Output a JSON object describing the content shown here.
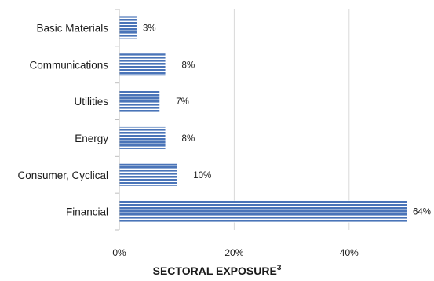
{
  "chart_data": {
    "type": "bar",
    "orientation": "horizontal",
    "title": "SECTORAL EXPOSURE",
    "title_superscript": "3",
    "xlabel": "",
    "ylabel": "",
    "categories": [
      "Basic Materials",
      "Communications",
      "Utilities",
      "Energy",
      "Consumer, Cyclical",
      "Financial"
    ],
    "values": [
      3,
      8,
      7,
      8,
      10,
      64
    ],
    "value_labels": [
      "3%",
      "8%",
      "7%",
      "8%",
      "10%",
      "64%"
    ],
    "x_ticks": [
      0,
      20,
      40
    ],
    "x_tick_labels": [
      "0%",
      "20%",
      "40%"
    ],
    "xlim": [
      0,
      50
    ],
    "grid": true,
    "legend": "none",
    "bar_color": "#4a74b8",
    "bar_stripe_color": "#ffffff",
    "grid_color": "#d9d9d9",
    "axis_color": "#bfbfbf"
  }
}
